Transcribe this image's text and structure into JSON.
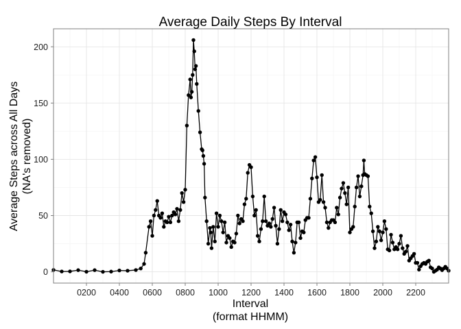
{
  "chart_data": {
    "type": "line",
    "title": "Average Daily Steps By Interval",
    "xlabel": [
      "Interval",
      "(format HHMM)"
    ],
    "ylabel": [
      "Average Steps across All Days",
      "(NA's removed)"
    ],
    "xlim": [
      0,
      2400
    ],
    "ylim": [
      -10,
      216
    ],
    "x_ticks": [
      200,
      400,
      600,
      800,
      1000,
      1200,
      1400,
      1600,
      1800,
      2000,
      2200
    ],
    "x_tick_labels": [
      "0200",
      "0400",
      "0600",
      "0800",
      "1000",
      "1200",
      "1400",
      "1600",
      "1800",
      "2000",
      "2200"
    ],
    "y_ticks": [
      0,
      50,
      100,
      150,
      200
    ],
    "y_tick_labels": [
      "0",
      "50",
      "100",
      "150",
      "200"
    ],
    "grid": true,
    "point_marks": true,
    "series_color": "#000000",
    "series": [
      {
        "name": "",
        "points": [
          [
            0,
            1.7
          ],
          [
            50,
            0.3
          ],
          [
            100,
            0.4
          ],
          [
            150,
            1.5
          ],
          [
            200,
            0.1
          ],
          [
            250,
            1.5
          ],
          [
            300,
            0.0
          ],
          [
            350,
            0.2
          ],
          [
            400,
            1.2
          ],
          [
            450,
            1.0
          ],
          [
            500,
            1.6
          ],
          [
            530,
            3.0
          ],
          [
            550,
            7.0
          ],
          [
            560,
            17.0
          ],
          [
            580,
            40.0
          ],
          [
            590,
            45.0
          ],
          [
            600,
            32.0
          ],
          [
            610,
            50.0
          ],
          [
            620,
            55.0
          ],
          [
            630,
            63.0
          ],
          [
            640,
            50.0
          ],
          [
            650,
            48.0
          ],
          [
            660,
            52.0
          ],
          [
            670,
            40.0
          ],
          [
            680,
            45.0
          ],
          [
            690,
            44.0
          ],
          [
            700,
            49.0
          ],
          [
            710,
            44.0
          ],
          [
            720,
            50.0
          ],
          [
            730,
            53.0
          ],
          [
            740,
            51.0
          ],
          [
            750,
            56.0
          ],
          [
            760,
            45.0
          ],
          [
            770,
            55.0
          ],
          [
            780,
            70.0
          ],
          [
            790,
            62.0
          ],
          [
            800,
            73.0
          ],
          [
            810,
            130.0
          ],
          [
            820,
            157.0
          ],
          [
            830,
            171.0
          ],
          [
            835,
            155.0
          ],
          [
            840,
            160.0
          ],
          [
            845,
            175.0
          ],
          [
            850,
            206.0
          ],
          [
            855,
            196.0
          ],
          [
            860,
            180.0
          ],
          [
            865,
            183.0
          ],
          [
            870,
            167.0
          ],
          [
            880,
            143.0
          ],
          [
            890,
            124.0
          ],
          [
            900,
            109.0
          ],
          [
            905,
            108.0
          ],
          [
            910,
            103.0
          ],
          [
            915,
            96.0
          ],
          [
            920,
            66.0
          ],
          [
            930,
            45.0
          ],
          [
            940,
            25.0
          ],
          [
            950,
            39.0
          ],
          [
            955,
            35.0
          ],
          [
            960,
            21.0
          ],
          [
            970,
            40.0
          ],
          [
            980,
            27.0
          ],
          [
            990,
            52.0
          ],
          [
            1000,
            40.0
          ],
          [
            1010,
            50.0
          ],
          [
            1020,
            45.0
          ],
          [
            1030,
            35.0
          ],
          [
            1040,
            44.0
          ],
          [
            1050,
            26.0
          ],
          [
            1060,
            32.0
          ],
          [
            1070,
            30.0
          ],
          [
            1080,
            22.0
          ],
          [
            1090,
            27.0
          ],
          [
            1100,
            26.0
          ],
          [
            1110,
            34.0
          ],
          [
            1120,
            50.0
          ],
          [
            1130,
            43.0
          ],
          [
            1140,
            47.0
          ],
          [
            1150,
            45.0
          ],
          [
            1160,
            60.0
          ],
          [
            1170,
            65.0
          ],
          [
            1180,
            88.0
          ],
          [
            1190,
            95.0
          ],
          [
            1200,
            93.0
          ],
          [
            1210,
            67.0
          ],
          [
            1220,
            50.0
          ],
          [
            1230,
            55.0
          ],
          [
            1240,
            32.0
          ],
          [
            1250,
            27.0
          ],
          [
            1260,
            38.0
          ],
          [
            1270,
            45.0
          ],
          [
            1280,
            67.0
          ],
          [
            1290,
            45.0
          ],
          [
            1300,
            41.0
          ],
          [
            1310,
            43.0
          ],
          [
            1320,
            40.0
          ],
          [
            1330,
            47.0
          ],
          [
            1340,
            57.0
          ],
          [
            1350,
            41.0
          ],
          [
            1360,
            25.0
          ],
          [
            1370,
            38.0
          ],
          [
            1380,
            55.0
          ],
          [
            1390,
            45.0
          ],
          [
            1400,
            53.0
          ],
          [
            1410,
            51.0
          ],
          [
            1420,
            44.0
          ],
          [
            1430,
            37.0
          ],
          [
            1440,
            42.0
          ],
          [
            1450,
            27.0
          ],
          [
            1460,
            17.0
          ],
          [
            1470,
            26.0
          ],
          [
            1480,
            44.0
          ],
          [
            1490,
            44.0
          ],
          [
            1500,
            30.0
          ],
          [
            1510,
            36.0
          ],
          [
            1520,
            35.0
          ],
          [
            1530,
            46.0
          ],
          [
            1540,
            48.0
          ],
          [
            1550,
            48.0
          ],
          [
            1560,
            65.0
          ],
          [
            1570,
            83.0
          ],
          [
            1580,
            99.0
          ],
          [
            1590,
            102.0
          ],
          [
            1600,
            84.0
          ],
          [
            1610,
            62.0
          ],
          [
            1620,
            64.0
          ],
          [
            1630,
            86.0
          ],
          [
            1640,
            62.0
          ],
          [
            1650,
            57.0
          ],
          [
            1660,
            44.0
          ],
          [
            1670,
            39.0
          ],
          [
            1680,
            44.0
          ],
          [
            1690,
            46.0
          ],
          [
            1700,
            46.0
          ],
          [
            1710,
            44.0
          ],
          [
            1720,
            57.0
          ],
          [
            1730,
            51.0
          ],
          [
            1740,
            66.0
          ],
          [
            1750,
            74.0
          ],
          [
            1760,
            79.0
          ],
          [
            1770,
            70.0
          ],
          [
            1780,
            60.0
          ],
          [
            1790,
            75.0
          ],
          [
            1800,
            35.0
          ],
          [
            1810,
            38.0
          ],
          [
            1820,
            40.0
          ],
          [
            1830,
            58.0
          ],
          [
            1840,
            75.0
          ],
          [
            1850,
            85.0
          ],
          [
            1860,
            67.0
          ],
          [
            1870,
            76.0
          ],
          [
            1880,
            86.0
          ],
          [
            1885,
            99.0
          ],
          [
            1890,
            87.0
          ],
          [
            1900,
            86.0
          ],
          [
            1910,
            85.0
          ],
          [
            1920,
            58.0
          ],
          [
            1930,
            52.0
          ],
          [
            1940,
            36.0
          ],
          [
            1950,
            21.0
          ],
          [
            1960,
            27.0
          ],
          [
            1970,
            40.0
          ],
          [
            1980,
            36.0
          ],
          [
            1990,
            28.0
          ],
          [
            2000,
            35.0
          ],
          [
            2010,
            45.0
          ],
          [
            2020,
            38.0
          ],
          [
            2030,
            20.0
          ],
          [
            2040,
            19.0
          ],
          [
            2050,
            33.0
          ],
          [
            2060,
            26.0
          ],
          [
            2070,
            20.0
          ],
          [
            2080,
            22.0
          ],
          [
            2090,
            20.0
          ],
          [
            2100,
            25.0
          ],
          [
            2110,
            32.0
          ],
          [
            2120,
            21.0
          ],
          [
            2130,
            16.0
          ],
          [
            2140,
            18.0
          ],
          [
            2150,
            23.0
          ],
          [
            2160,
            10.0
          ],
          [
            2170,
            12.0
          ],
          [
            2180,
            14.0
          ],
          [
            2190,
            16.0
          ],
          [
            2200,
            8.0
          ],
          [
            2210,
            8.0
          ],
          [
            2220,
            2.0
          ],
          [
            2230,
            5.0
          ],
          [
            2240,
            7.0
          ],
          [
            2250,
            8.0
          ],
          [
            2260,
            7.0
          ],
          [
            2270,
            9.0
          ],
          [
            2280,
            10.0
          ],
          [
            2290,
            4.0
          ],
          [
            2300,
            3.0
          ],
          [
            2310,
            0.0
          ],
          [
            2320,
            1.0
          ],
          [
            2330,
            2.0
          ],
          [
            2340,
            4.0
          ],
          [
            2350,
            3.0
          ],
          [
            2360,
            1.5
          ],
          [
            2370,
            3.0
          ],
          [
            2380,
            4.5
          ],
          [
            2390,
            3.0
          ],
          [
            2400,
            1.0
          ]
        ]
      }
    ]
  }
}
